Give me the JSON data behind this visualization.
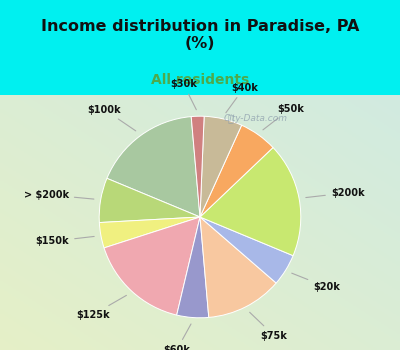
{
  "title": "Income distribution in Paradise, PA\n(%)",
  "subtitle": "All residents",
  "title_color": "#111111",
  "subtitle_color": "#4caa4c",
  "background_cyan": "#00f0f0",
  "background_chart_tl": "#d0ede8",
  "background_chart_br": "#c8e8d0",
  "labels": [
    "$100k",
    "> $200k",
    "$150k",
    "$125k",
    "$60k",
    "$75k",
    "$20k",
    "$200k",
    "$50k",
    "$40k",
    "$30k"
  ],
  "values": [
    17,
    7,
    4,
    16,
    5,
    12,
    5,
    18,
    6,
    6,
    2
  ],
  "colors": [
    "#a8c8a0",
    "#b8d878",
    "#f0f080",
    "#f0a8b0",
    "#9898cc",
    "#f8c8a0",
    "#a8b8e8",
    "#c8e870",
    "#f8a860",
    "#c8ba98",
    "#d08080"
  ],
  "startangle": 95,
  "watermark": "City-Data.com"
}
